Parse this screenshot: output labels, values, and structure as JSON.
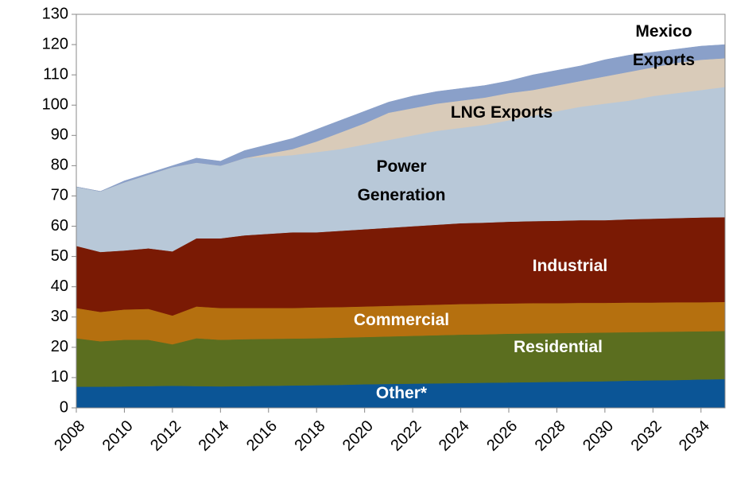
{
  "chart_data": {
    "type": "stacked_area",
    "x": [
      2008,
      2009,
      2010,
      2011,
      2012,
      2013,
      2014,
      2015,
      2016,
      2017,
      2018,
      2019,
      2020,
      2021,
      2022,
      2023,
      2024,
      2025,
      2026,
      2027,
      2028,
      2029,
      2030,
      2031,
      2032,
      2033,
      2034,
      2035
    ],
    "xlim": [
      2008,
      2035
    ],
    "xticks": [
      2008,
      2010,
      2012,
      2014,
      2016,
      2018,
      2020,
      2022,
      2024,
      2026,
      2028,
      2030,
      2032,
      2034
    ],
    "ylim": [
      0,
      130
    ],
    "yticks": [
      0,
      10,
      20,
      30,
      40,
      50,
      60,
      70,
      80,
      90,
      100,
      110,
      120,
      130
    ],
    "series": [
      {
        "name": "Other*",
        "color": "#0b5596",
        "label_color": "#ffffff",
        "values": [
          7.0,
          7.0,
          7.1,
          7.2,
          7.3,
          7.2,
          7.1,
          7.2,
          7.3,
          7.4,
          7.5,
          7.6,
          7.8,
          7.9,
          8.0,
          8.1,
          8.2,
          8.3,
          8.4,
          8.5,
          8.6,
          8.7,
          8.8,
          9.0,
          9.1,
          9.2,
          9.4,
          9.5
        ]
      },
      {
        "name": "Residential",
        "color": "#5b6e1f",
        "label_color": "#ffffff",
        "values": [
          16.0,
          15.0,
          15.4,
          15.3,
          13.7,
          15.8,
          15.4,
          15.5,
          15.5,
          15.5,
          15.5,
          15.6,
          15.6,
          15.7,
          15.8,
          15.9,
          16.0,
          16.0,
          16.1,
          16.1,
          16.1,
          16.1,
          16.1,
          16.0,
          16.0,
          16.0,
          15.9,
          15.9
        ]
      },
      {
        "name": "Commercial",
        "color": "#b5700f",
        "label_color": "#ffffff",
        "values": [
          10,
          9.7,
          10,
          10.2,
          9.5,
          10.5,
          10.5,
          10.3,
          10.2,
          10.1,
          10.2,
          10.1,
          10.1,
          10.1,
          10.1,
          10.1,
          10.1,
          10.1,
          10,
          10,
          9.9,
          9.9,
          9.8,
          9.8,
          9.7,
          9.7,
          9.6,
          9.6
        ]
      },
      {
        "name": "Industrial",
        "color": "#7a1a04",
        "label_color": "#ffffff",
        "values": [
          20.5,
          19.8,
          19.5,
          20.0,
          21.2,
          22.5,
          23,
          24,
          24.5,
          25,
          24.8,
          25.2,
          25.5,
          25.8,
          26.1,
          26.4,
          26.7,
          26.8,
          27,
          27.1,
          27.2,
          27.3,
          27.3,
          27.5,
          27.7,
          27.8,
          28,
          28
        ]
      },
      {
        "name": "Power Generation",
        "color": "#b8c8d8",
        "label_color": "#000000",
        "values": [
          19.5,
          20,
          22.5,
          24.3,
          27.8,
          25,
          24,
          25.5,
          25.5,
          25.5,
          26.5,
          27,
          28,
          29,
          30,
          31,
          31.5,
          32.3,
          33.5,
          34.8,
          36.2,
          37.5,
          38.5,
          39.2,
          40.5,
          41.3,
          42.1,
          43
        ]
      },
      {
        "name": "LNG Exports",
        "color": "#d9cbb9",
        "label_color": "#000000",
        "values": [
          0,
          0,
          0,
          0,
          0,
          0,
          0,
          0,
          1,
          2,
          3.5,
          5.5,
          7,
          9,
          9,
          9,
          9,
          9,
          9,
          8.5,
          8.5,
          8.5,
          9,
          9.5,
          9.5,
          10,
          10,
          9.5
        ]
      },
      {
        "name": "Mexico Exports",
        "color": "#8aa0c9",
        "label_color": "#000000",
        "values": [
          0,
          0,
          0.5,
          0.5,
          0.5,
          1.5,
          1.5,
          2.5,
          3,
          3.5,
          4,
          4,
          4,
          3.5,
          4,
          4,
          4,
          4,
          4,
          5,
          5,
          5,
          5.5,
          5.5,
          5,
          4.5,
          4.5,
          4.5
        ]
      }
    ]
  }
}
